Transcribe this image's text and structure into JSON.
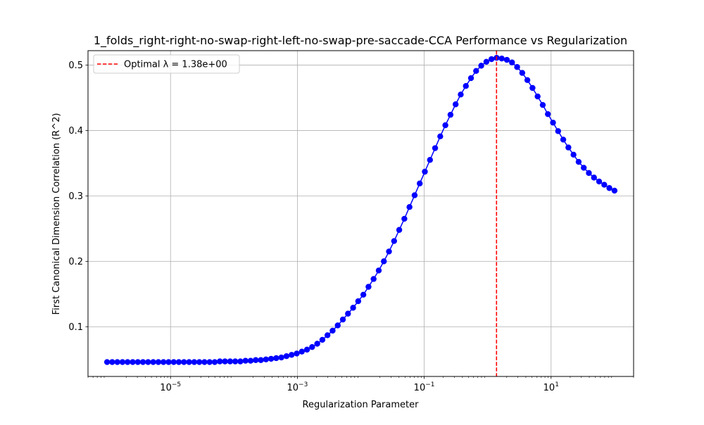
{
  "chart_data": {
    "type": "line",
    "title": "1_folds_right-right-no-swap-right-left-no-swap-pre-saccade-CCA Performance vs Regularization",
    "xlabel": "Regularization Parameter",
    "ylabel": "First Canonical Dimension Correlation (R^2)",
    "x_scale": "log",
    "xlim": [
      5e-07,
      200.0
    ],
    "ylim": [
      0.024,
      0.522
    ],
    "x_ticks": [
      {
        "value": 1e-05,
        "base": "10",
        "exp": "−5"
      },
      {
        "value": 0.001,
        "base": "10",
        "exp": "−3"
      },
      {
        "value": 0.1,
        "base": "10",
        "exp": "−1"
      },
      {
        "value": 10,
        "base": "10",
        "exp": "1"
      }
    ],
    "y_ticks": [
      {
        "value": 0.1,
        "label": "0.1"
      },
      {
        "value": 0.2,
        "label": "0.2"
      },
      {
        "value": 0.3,
        "label": "0.3"
      },
      {
        "value": 0.4,
        "label": "0.4"
      },
      {
        "value": 0.5,
        "label": "0.5"
      }
    ],
    "grid": true,
    "legend": {
      "position": "top-left",
      "entries": [
        {
          "label": "Optimal λ = 1.38e+00",
          "style": "dashed",
          "color": "#ff0000"
        }
      ]
    },
    "series": [
      {
        "color": "#0000ff",
        "marker": "circle",
        "x_log10_range": [
          -6,
          2
        ],
        "num_points": 100,
        "values": [
          0.046,
          0.046,
          0.046,
          0.046,
          0.046,
          0.046,
          0.046,
          0.046,
          0.046,
          0.046,
          0.046,
          0.046,
          0.046,
          0.046,
          0.046,
          0.046,
          0.046,
          0.046,
          0.046,
          0.046,
          0.046,
          0.046,
          0.047,
          0.047,
          0.047,
          0.047,
          0.047,
          0.048,
          0.048,
          0.049,
          0.049,
          0.05,
          0.051,
          0.052,
          0.053,
          0.055,
          0.057,
          0.059,
          0.062,
          0.065,
          0.069,
          0.074,
          0.08,
          0.087,
          0.094,
          0.102,
          0.111,
          0.12,
          0.129,
          0.139,
          0.149,
          0.161,
          0.173,
          0.186,
          0.2,
          0.215,
          0.231,
          0.248,
          0.265,
          0.283,
          0.301,
          0.319,
          0.337,
          0.355,
          0.373,
          0.391,
          0.408,
          0.424,
          0.44,
          0.455,
          0.468,
          0.48,
          0.491,
          0.499,
          0.505,
          0.509,
          0.511,
          0.51,
          0.508,
          0.504,
          0.497,
          0.488,
          0.477,
          0.465,
          0.452,
          0.439,
          0.425,
          0.412,
          0.399,
          0.386,
          0.374,
          0.363,
          0.352,
          0.343,
          0.335,
          0.328,
          0.322,
          0.317,
          0.312,
          0.308
        ]
      }
    ],
    "vline": {
      "x": 1.38,
      "color": "#ff0000",
      "style": "dashed"
    }
  }
}
